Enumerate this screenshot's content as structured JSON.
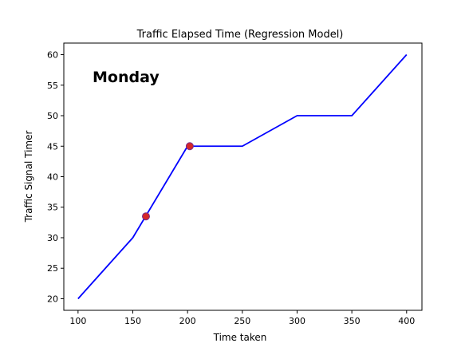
{
  "chart_data": {
    "type": "line",
    "title": "Traffic Elapsed Time (Regression Model)",
    "xlabel": "Time taken",
    "ylabel": "Traffic Signal Timer",
    "annotation": "Monday",
    "xlim": [
      87,
      414
    ],
    "ylim": [
      18.1,
      61.9
    ],
    "xticks": [
      100,
      150,
      200,
      250,
      300,
      350,
      400
    ],
    "yticks": [
      20,
      25,
      30,
      35,
      40,
      45,
      50,
      55,
      60
    ],
    "grid": false,
    "series": [
      {
        "color": "#0000ff",
        "x": [
          100,
          150,
          200,
          250,
          300,
          350,
          400
        ],
        "y": [
          20,
          30,
          45,
          45,
          50,
          50,
          60
        ]
      }
    ],
    "markers": {
      "color": "#d62728",
      "edge_color": "#7b2d8e",
      "x": [
        162,
        202
      ],
      "y": [
        33.5,
        45
      ]
    }
  }
}
